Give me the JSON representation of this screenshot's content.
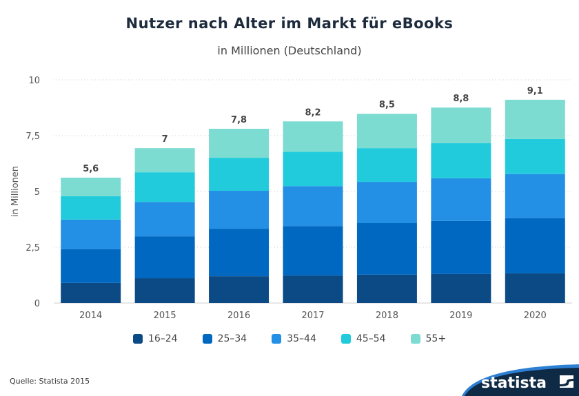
{
  "chart_data": {
    "type": "bar",
    "stacked": true,
    "title": "Nutzer nach Alter im Markt für eBooks",
    "subtitle": "in Millionen (Deutschland)",
    "ylabel": "in Millionen",
    "xlabel": "",
    "ylim": [
      0,
      10
    ],
    "yticks": [
      "0",
      "2,5",
      "5",
      "7,5",
      "10"
    ],
    "ytick_values": [
      0,
      2.5,
      5,
      7.5,
      10
    ],
    "grid": true,
    "legend_position": "bottom",
    "categories": [
      "2014",
      "2015",
      "2016",
      "2017",
      "2018",
      "2019",
      "2020"
    ],
    "totals_labels": [
      "5,6",
      "7",
      "7,8",
      "8,2",
      "8,5",
      "8,8",
      "9,1"
    ],
    "series": [
      {
        "name": "16-24",
        "color": "#0b4a84",
        "values": [
          0.9,
          1.11,
          1.2,
          1.23,
          1.27,
          1.3,
          1.33
        ]
      },
      {
        "name": "25-34",
        "color": "#0068c0",
        "values": [
          1.51,
          1.88,
          2.13,
          2.22,
          2.31,
          2.38,
          2.47
        ]
      },
      {
        "name": "35-44",
        "color": "#238fe5",
        "values": [
          1.33,
          1.54,
          1.7,
          1.79,
          1.85,
          1.91,
          1.98
        ]
      },
      {
        "name": "45-54",
        "color": "#22cbdc",
        "values": [
          1.05,
          1.33,
          1.48,
          1.54,
          1.51,
          1.57,
          1.57
        ]
      },
      {
        "name": "55+",
        "color": "#7ddcd1",
        "values": [
          0.83,
          1.08,
          1.3,
          1.36,
          1.54,
          1.6,
          1.76
        ]
      }
    ]
  },
  "footer": {
    "source": "Quelle: Statista 2015",
    "logo": "statista"
  }
}
